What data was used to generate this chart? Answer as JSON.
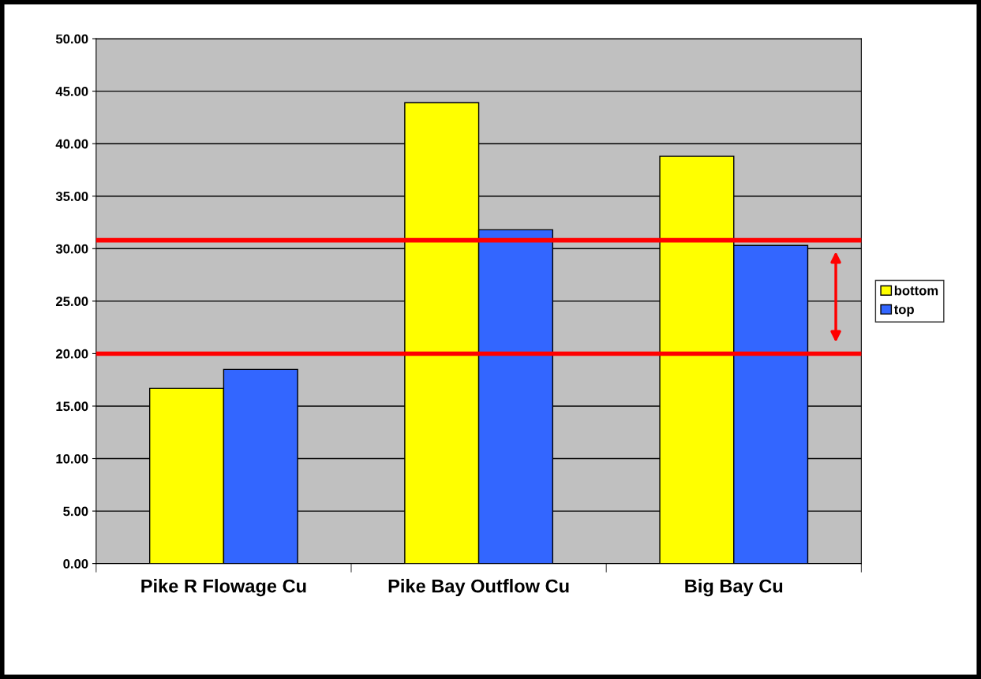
{
  "chart_data": {
    "type": "bar",
    "categories": [
      "Pike R Flowage Cu",
      "Pike Bay Outflow Cu",
      "Big Bay Cu"
    ],
    "series": [
      {
        "name": "bottom",
        "color": "#ffff00",
        "values": [
          16.7,
          43.9,
          38.8
        ]
      },
      {
        "name": "top",
        "color": "#3366ff",
        "values": [
          18.5,
          31.8,
          30.3
        ]
      }
    ],
    "ylim": [
      0,
      50
    ],
    "yticks": [
      {
        "value": 0,
        "label": "0.00"
      },
      {
        "value": 5,
        "label": "5.00"
      },
      {
        "value": 10,
        "label": "10.00"
      },
      {
        "value": 15,
        "label": "15.00"
      },
      {
        "value": 20,
        "label": "20.00"
      },
      {
        "value": 25,
        "label": "25.00"
      },
      {
        "value": 30,
        "label": "30.00"
      },
      {
        "value": 35,
        "label": "35.00"
      },
      {
        "value": 40,
        "label": "40.00"
      },
      {
        "value": 45,
        "label": "45.00"
      },
      {
        "value": 50,
        "label": "50.00"
      }
    ],
    "ref_lines": [
      {
        "axis": "y",
        "value": 30.8,
        "color": "#ff0000",
        "line_style": "solid"
      },
      {
        "axis": "y",
        "value": 20,
        "color": "#ff0000",
        "line_style": "solid"
      }
    ],
    "grid": "y",
    "legend": "right"
  }
}
